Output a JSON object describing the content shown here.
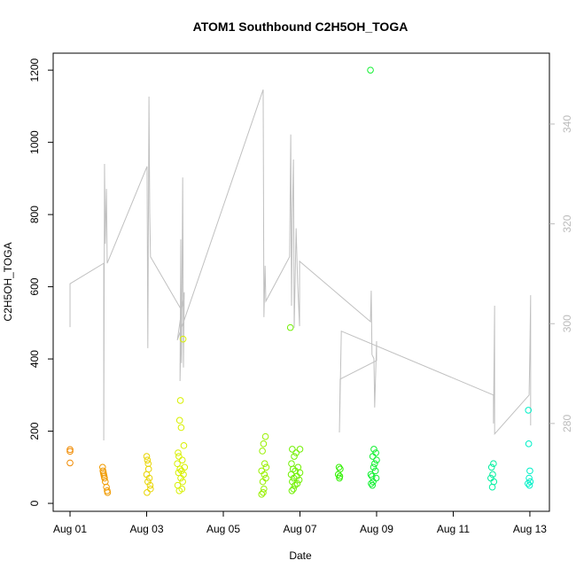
{
  "chart_data": {
    "type": "scatter",
    "title": "ATOM1 Southbound C2H5OH_TOGA",
    "x_label": "Date",
    "y_label": "C2H5OH_TOGA",
    "xlim": [
      0.56,
      13.51
    ],
    "ylim": [
      -22,
      1247
    ],
    "y2lim": [
      262.4,
      354.2
    ],
    "xticks": [
      {
        "value": 1,
        "label": "Aug 01"
      },
      {
        "value": 3,
        "label": "Aug 03"
      },
      {
        "value": 5,
        "label": "Aug 05"
      },
      {
        "value": 7,
        "label": "Aug 07"
      },
      {
        "value": 9,
        "label": "Aug 09"
      },
      {
        "value": 11,
        "label": "Aug 11"
      },
      {
        "value": 13,
        "label": "Aug 13"
      }
    ],
    "yticks": [
      0,
      200,
      400,
      600,
      800,
      1000,
      1200
    ],
    "y2ticks": [
      280,
      300,
      320,
      340
    ],
    "series": [
      {
        "type": "line",
        "axis": "y2",
        "color": "#c0c0c0",
        "x": [
          1.0,
          1.0,
          1.88,
          1.88,
          1.9,
          1.92,
          1.95,
          1.97,
          3.01,
          3.03,
          3.06,
          3.08,
          3.1,
          3.91,
          3.87,
          3.89,
          3.91,
          3.94,
          3.96,
          3.98,
          3.8,
          6.04,
          6.06,
          6.09,
          6.11,
          6.73,
          6.76,
          6.78,
          6.8,
          6.83,
          6.85,
          6.9,
          6.94,
          6.99,
          6.99,
          8.84,
          8.86,
          8.88,
          8.93,
          8.95,
          9.0,
          9.0,
          8.05,
          8.03,
          8.08,
          12.05,
          12.05,
          12.08,
          12.08,
          12.98,
          13.0,
          13.02,
          13.02
        ],
        "values": [
          299.3,
          308.0,
          312.1,
          276.6,
          332.0,
          316.0,
          327.0,
          312.1,
          331.5,
          295.1,
          345.5,
          322.2,
          313.4,
          302.7,
          288.5,
          316.9,
          292.1,
          329.3,
          291.2,
          306.3,
          296.7,
          346.9,
          301.3,
          311.6,
          304.5,
          313.4,
          337.9,
          303.6,
          320.5,
          332.9,
          299.2,
          319.1,
          308.0,
          299.5,
          312.5,
          300.4,
          306.6,
          293.8,
          293.0,
          283.2,
          296.5,
          292.6,
          288.9,
          278.2,
          298.5,
          285.7,
          280.0,
          303.6,
          277.9,
          285.7,
          294.4,
          305.7,
          279.6
        ]
      },
      {
        "type": "scatter",
        "color": "#f08a00",
        "x": [
          1.0,
          1.0,
          1.0
        ],
        "values": [
          149,
          144,
          112
        ]
      },
      {
        "type": "scatter",
        "color": "#f09a00",
        "x": [
          1.85,
          1.86,
          1.87,
          1.88,
          1.89,
          1.9,
          1.92,
          1.95,
          1.97,
          1.98
        ],
        "values": [
          100,
          90,
          85,
          80,
          75,
          70,
          60,
          45,
          35,
          30
        ]
      },
      {
        "type": "scatter",
        "color": "#e8d400",
        "x": [
          3.0,
          3.02,
          3.04,
          3.05,
          3.0,
          3.07,
          3.03,
          3.09,
          3.1,
          3.01
        ],
        "values": [
          130,
          120,
          110,
          95,
          80,
          70,
          60,
          50,
          40,
          30
        ]
      },
      {
        "type": "scatter",
        "color": "#d8f000",
        "x": [
          3.95,
          3.88,
          3.86,
          3.9,
          3.97,
          3.82,
          3.84,
          3.93,
          3.8,
          3.99,
          3.87,
          3.91,
          3.83,
          3.96,
          3.89,
          3.94,
          3.81,
          3.92,
          3.85
        ],
        "values": [
          455,
          285,
          230,
          210,
          160,
          140,
          130,
          120,
          110,
          100,
          95,
          90,
          85,
          80,
          70,
          60,
          50,
          40,
          35
        ]
      },
      {
        "type": "scatter",
        "color": "#98f000",
        "x": [
          6.1,
          6.05,
          6.02,
          6.08,
          6.12,
          6.0,
          6.07,
          6.11,
          6.03,
          6.06,
          6.04,
          6.0
        ],
        "values": [
          185,
          165,
          145,
          110,
          100,
          90,
          80,
          70,
          60,
          40,
          30,
          25
        ]
      },
      {
        "type": "scatter",
        "color": "#70f000",
        "x": [
          6.75,
          6.8,
          6.9,
          6.85,
          6.78,
          6.95,
          6.82,
          6.88,
          7.0,
          6.77,
          6.92,
          6.84,
          6.98,
          6.8,
          6.93,
          6.87,
          6.83,
          6.79,
          7.0
        ],
        "values": [
          487,
          150,
          140,
          130,
          110,
          100,
          95,
          90,
          85,
          80,
          75,
          70,
          65,
          60,
          55,
          50,
          40,
          35,
          150
        ]
      },
      {
        "type": "scatter",
        "color": "#30f000",
        "x": [
          8.02,
          8.05,
          8.0,
          8.04,
          8.03
        ],
        "values": [
          100,
          95,
          80,
          75,
          70
        ]
      },
      {
        "type": "scatter",
        "color": "#10f030",
        "x": [
          8.84,
          8.93,
          8.98,
          8.9,
          9.0,
          8.95,
          8.92,
          8.97,
          8.85,
          8.88,
          8.99,
          8.91,
          8.86,
          8.89
        ],
        "values": [
          1200,
          150,
          140,
          130,
          120,
          110,
          100,
          90,
          80,
          75,
          70,
          60,
          55,
          50
        ]
      },
      {
        "type": "scatter",
        "color": "#00f0a0",
        "x": [
          12.05,
          12.0,
          12.03,
          11.98,
          12.06,
          12.02
        ],
        "values": [
          110,
          100,
          80,
          70,
          60,
          45
        ]
      },
      {
        "type": "scatter",
        "color": "#00f0c8",
        "x": [
          12.96,
          12.97,
          13.0,
          12.98,
          13.01,
          12.95,
          12.99
        ],
        "values": [
          258,
          165,
          90,
          70,
          60,
          55,
          50
        ]
      }
    ]
  }
}
